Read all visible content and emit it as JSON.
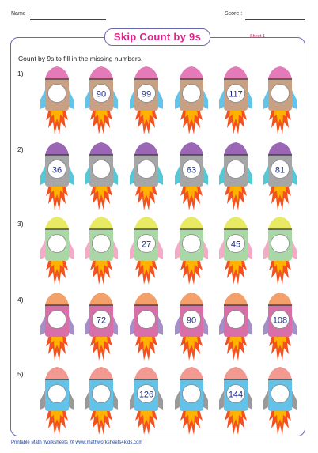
{
  "header": {
    "name_label": "Name :",
    "score_label": "Score :"
  },
  "title": "Skip Count by 9s",
  "sheet_label": "Sheet 1",
  "instructions": "Count by 9s to fill in the missing numbers.",
  "rows": [
    {
      "label": "1)",
      "palette": {
        "nose": "#e57ab8",
        "body": "#c8a083",
        "fins": "#63c3e8",
        "window": "#ffffff"
      },
      "values": [
        "",
        "90",
        "99",
        "",
        "117",
        ""
      ]
    },
    {
      "label": "2)",
      "palette": {
        "nose": "#9b66b5",
        "body": "#a6a6a6",
        "fins": "#55c8d8",
        "window": "#ffffff"
      },
      "values": [
        "36",
        "",
        "",
        "63",
        "",
        "81"
      ]
    },
    {
      "label": "3)",
      "palette": {
        "nose": "#e8ea64",
        "body": "#a9d8a6",
        "fins": "#f5aac8",
        "window": "#ffffff"
      },
      "values": [
        "",
        "",
        "27",
        "",
        "45",
        ""
      ]
    },
    {
      "label": "4)",
      "palette": {
        "nose": "#f4a06a",
        "body": "#d86fa8",
        "fins": "#a68fc9",
        "window": "#ffffff"
      },
      "values": [
        "",
        "72",
        "",
        "90",
        "",
        "108"
      ]
    },
    {
      "label": "5)",
      "palette": {
        "nose": "#f29a92",
        "body": "#62c2e8",
        "fins": "#9a9a9a",
        "window": "#ffffff"
      },
      "values": [
        "",
        "",
        "126",
        "",
        "144",
        ""
      ]
    }
  ],
  "footer": "Printable Math Worksheets @ www.mathworksheets4kids.com"
}
